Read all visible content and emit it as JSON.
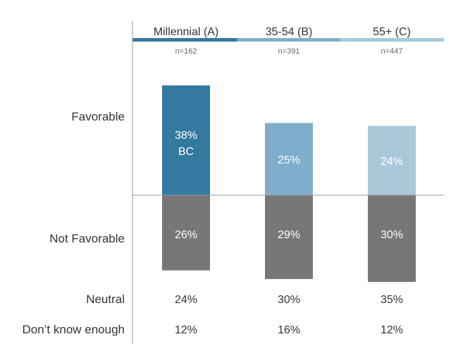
{
  "chart_data": {
    "type": "bar",
    "categories": [
      "Millennial (A)",
      "35-54 (B)",
      "55+ (C)"
    ],
    "sample_sizes": [
      "n=162",
      "n=391",
      "n=447"
    ],
    "category_colors": [
      "#34799f",
      "#7eaecb",
      "#a9c9db"
    ],
    "neutral_bar_color": "#777777",
    "series": [
      {
        "name": "Favorable",
        "values": [
          38,
          25,
          24
        ],
        "labels": [
          "38%",
          "25%",
          "24%"
        ],
        "sig": [
          "BC",
          "",
          ""
        ]
      },
      {
        "name": "Not Favorable",
        "values": [
          26,
          29,
          30
        ],
        "labels": [
          "26%",
          "29%",
          "30%"
        ]
      }
    ],
    "extra_rows": [
      {
        "name": "Neutral",
        "labels": [
          "24%",
          "30%",
          "35%"
        ]
      },
      {
        "name": "Don’t know enough",
        "labels": [
          "12%",
          "16%",
          "12%"
        ]
      }
    ],
    "orientation": "diverging-vertical",
    "grid": false
  }
}
